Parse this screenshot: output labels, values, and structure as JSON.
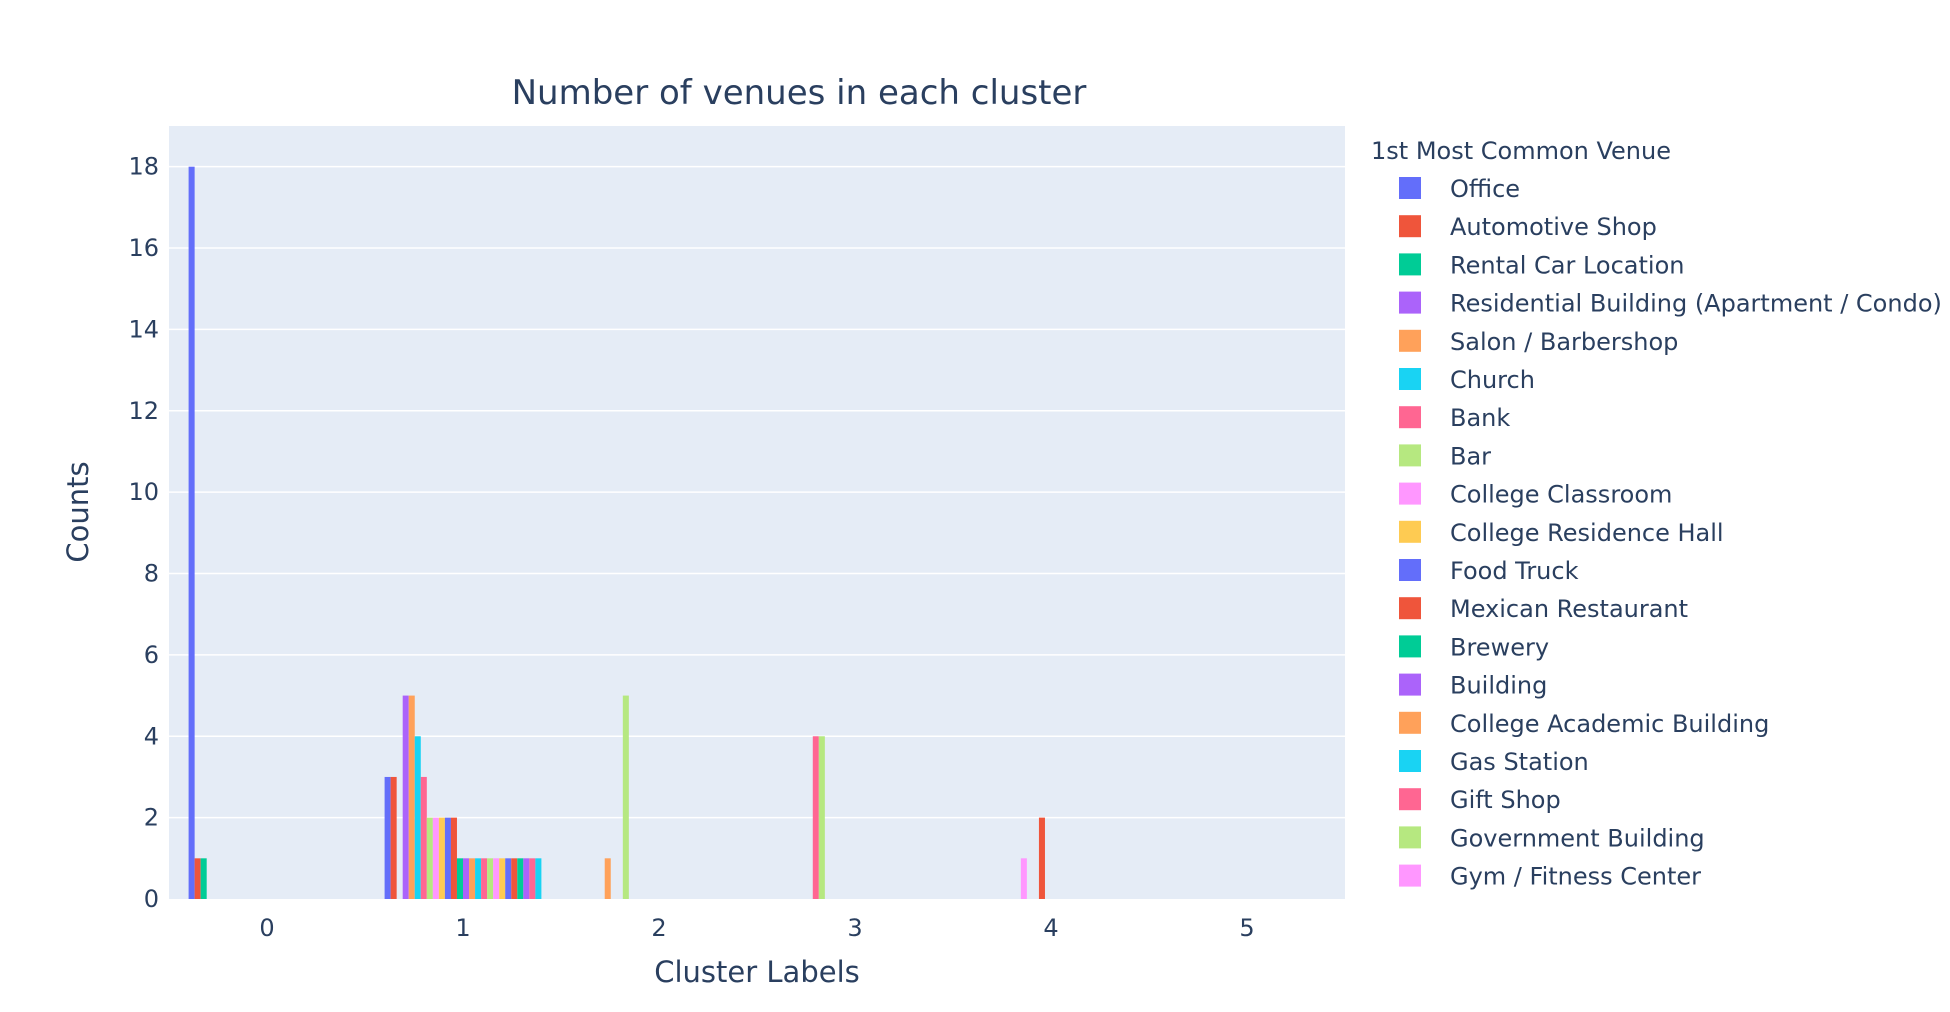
{
  "chart_data": {
    "type": "bar",
    "title": "Number of venues in each cluster",
    "xlabel": "Cluster Labels",
    "ylabel": "Counts",
    "x_ticks": [
      "0",
      "1",
      "2",
      "3",
      "4",
      "5"
    ],
    "y_ticks": [
      "0",
      "2",
      "4",
      "6",
      "8",
      "10",
      "12",
      "14",
      "16",
      "18"
    ],
    "ylim": [
      0,
      19
    ],
    "xlim": [
      -0.5,
      5.5
    ],
    "grid": true,
    "legend_title": "1st Most Common Venue",
    "legend_position": "right",
    "plot_background": "#e5ecf6",
    "series": [
      {
        "name": "Office",
        "color": "#636efa",
        "points": [
          {
            "cluster": 0,
            "value": 18
          },
          {
            "cluster": 1,
            "value": 3
          }
        ]
      },
      {
        "name": "Automotive Shop",
        "color": "#ef553b",
        "points": [
          {
            "cluster": 0,
            "value": 1
          },
          {
            "cluster": 1,
            "value": 3
          }
        ]
      },
      {
        "name": "Rental Car Location",
        "color": "#00cc96",
        "points": [
          {
            "cluster": 0,
            "value": 1
          }
        ]
      },
      {
        "name": "Residential Building (Apartment / Condo)",
        "color": "#ab63fa",
        "points": [
          {
            "cluster": 1,
            "value": 5
          }
        ]
      },
      {
        "name": "Salon / Barbershop",
        "color": "#ffa15a",
        "points": [
          {
            "cluster": 1,
            "value": 5
          },
          {
            "cluster": 2,
            "value": 1
          }
        ]
      },
      {
        "name": "Church",
        "color": "#19d3f3",
        "points": [
          {
            "cluster": 1,
            "value": 4
          }
        ]
      },
      {
        "name": "Bank",
        "color": "#ff6692",
        "points": [
          {
            "cluster": 1,
            "value": 3
          },
          {
            "cluster": 3,
            "value": 4
          }
        ]
      },
      {
        "name": "Bar",
        "color": "#b6e880",
        "points": [
          {
            "cluster": 1,
            "value": 2
          },
          {
            "cluster": 2,
            "value": 5
          },
          {
            "cluster": 3,
            "value": 4
          }
        ]
      },
      {
        "name": "College Classroom",
        "color": "#ff97ff",
        "points": [
          {
            "cluster": 1,
            "value": 2
          },
          {
            "cluster": 4,
            "value": 1
          }
        ]
      },
      {
        "name": "College Residence Hall",
        "color": "#fecb52",
        "points": [
          {
            "cluster": 1,
            "value": 2
          }
        ]
      },
      {
        "name": "Food Truck",
        "color": "#636efa",
        "points": [
          {
            "cluster": 1,
            "value": 2
          }
        ]
      },
      {
        "name": "Mexican Restaurant",
        "color": "#ef553b",
        "points": [
          {
            "cluster": 1,
            "value": 2
          },
          {
            "cluster": 4,
            "value": 2
          }
        ]
      },
      {
        "name": "Brewery",
        "color": "#00cc96",
        "points": [
          {
            "cluster": 1,
            "value": 1
          }
        ]
      },
      {
        "name": "Building",
        "color": "#ab63fa",
        "points": [
          {
            "cluster": 1,
            "value": 1
          }
        ]
      },
      {
        "name": "College Academic Building",
        "color": "#ffa15a",
        "points": [
          {
            "cluster": 1,
            "value": 1
          }
        ]
      },
      {
        "name": "Gas Station",
        "color": "#19d3f3",
        "points": [
          {
            "cluster": 1,
            "value": 1
          }
        ]
      },
      {
        "name": "Gift Shop",
        "color": "#ff6692",
        "points": [
          {
            "cluster": 1,
            "value": 1
          }
        ]
      },
      {
        "name": "Government Building",
        "color": "#b6e880",
        "points": [
          {
            "cluster": 1,
            "value": 1
          }
        ]
      },
      {
        "name": "Gym / Fitness Center",
        "color": "#ff97ff",
        "points": [
          {
            "cluster": 1,
            "value": 1
          }
        ]
      },
      {
        "name": "",
        "color": "#fecb52",
        "points": [
          {
            "cluster": 1,
            "value": 1
          }
        ]
      },
      {
        "name": "",
        "color": "#636efa",
        "points": [
          {
            "cluster": 1,
            "value": 1
          }
        ]
      },
      {
        "name": "",
        "color": "#ef553b",
        "points": [
          {
            "cluster": 1,
            "value": 1
          }
        ]
      },
      {
        "name": "",
        "color": "#00cc96",
        "points": [
          {
            "cluster": 1,
            "value": 1
          }
        ]
      },
      {
        "name": "",
        "color": "#ab63fa",
        "points": [
          {
            "cluster": 1,
            "value": 1
          }
        ]
      },
      {
        "name": "",
        "color": "#ff6692",
        "points": [
          {
            "cluster": 1,
            "value": 1
          }
        ]
      },
      {
        "name": "",
        "color": "#19d3f3",
        "points": [
          {
            "cluster": 1,
            "value": 1
          }
        ]
      }
    ]
  }
}
